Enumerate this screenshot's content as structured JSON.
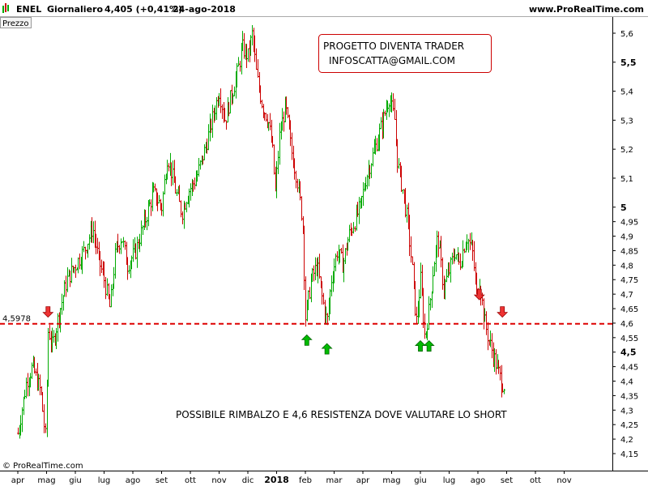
{
  "header": {
    "symbol": "ENEL",
    "timeframe": "Giornaliero",
    "last_price": "4,405 (+0,41%)",
    "date": "24-ago-2018",
    "website": "www.ProRealTime.com"
  },
  "panel_label": "Prezzo",
  "copyright": "© ProRealTime.com",
  "colors": {
    "up": "#00aa00",
    "down": "#cc0000",
    "line": "#dd0000",
    "box_border": "#cc0000",
    "arrow_up": "#00bb00",
    "arrow_down": "#ee3333"
  },
  "chart_data": {
    "type": "bar",
    "style": "ohlc",
    "ylim": [
      4.13,
      5.63
    ],
    "y_ticks": [
      {
        "value": 5.6,
        "label": "5,6"
      },
      {
        "value": 5.5,
        "label": "5,5",
        "bold": true
      },
      {
        "value": 5.4,
        "label": "5,4"
      },
      {
        "value": 5.3,
        "label": "5,3"
      },
      {
        "value": 5.2,
        "label": "5,2"
      },
      {
        "value": 5.1,
        "label": "5,1"
      },
      {
        "value": 5.0,
        "label": "5",
        "bold": true
      },
      {
        "value": 4.95,
        "label": "4,95"
      },
      {
        "value": 4.9,
        "label": "4,9"
      },
      {
        "value": 4.85,
        "label": "4,85"
      },
      {
        "value": 4.8,
        "label": "4,8"
      },
      {
        "value": 4.75,
        "label": "4,75"
      },
      {
        "value": 4.7,
        "label": "4,7"
      },
      {
        "value": 4.65,
        "label": "4,65"
      },
      {
        "value": 4.6,
        "label": "4,6"
      },
      {
        "value": 4.55,
        "label": "4,55"
      },
      {
        "value": 4.5,
        "label": "4,5",
        "bold": true
      },
      {
        "value": 4.45,
        "label": "4,45"
      },
      {
        "value": 4.4,
        "label": "4,4"
      },
      {
        "value": 4.35,
        "label": "4,35"
      },
      {
        "value": 4.3,
        "label": "4,3"
      },
      {
        "value": 4.25,
        "label": "4,25"
      },
      {
        "value": 4.2,
        "label": "4,2"
      },
      {
        "value": 4.15,
        "label": "4,15"
      }
    ],
    "x_ticks": [
      {
        "month": 0,
        "label": "apr"
      },
      {
        "month": 1,
        "label": "mag"
      },
      {
        "month": 2,
        "label": "giu"
      },
      {
        "month": 3,
        "label": "lug"
      },
      {
        "month": 4,
        "label": "ago"
      },
      {
        "month": 5,
        "label": "set"
      },
      {
        "month": 6,
        "label": "ott"
      },
      {
        "month": 7,
        "label": "nov"
      },
      {
        "month": 8,
        "label": "dic"
      },
      {
        "month": 9,
        "label": "2018",
        "bold": true
      },
      {
        "month": 10,
        "label": "feb"
      },
      {
        "month": 11,
        "label": "mar"
      },
      {
        "month": 12,
        "label": "apr"
      },
      {
        "month": 13,
        "label": "mag"
      },
      {
        "month": 14,
        "label": "giu"
      },
      {
        "month": 15,
        "label": "lug"
      },
      {
        "month": 16,
        "label": "ago"
      },
      {
        "month": 17,
        "label": "set"
      },
      {
        "month": 18,
        "label": "ott"
      },
      {
        "month": 19,
        "label": "nov"
      }
    ],
    "price_path": [
      [
        0.0,
        4.22
      ],
      [
        0.3,
        4.4
      ],
      [
        0.5,
        4.45
      ],
      [
        0.8,
        4.36
      ],
      [
        0.95,
        4.2
      ],
      [
        1.05,
        4.58
      ],
      [
        1.2,
        4.52
      ],
      [
        1.4,
        4.62
      ],
      [
        1.7,
        4.75
      ],
      [
        2.0,
        4.8
      ],
      [
        2.3,
        4.85
      ],
      [
        2.6,
        4.93
      ],
      [
        2.8,
        4.82
      ],
      [
        3.0,
        4.75
      ],
      [
        3.2,
        4.65
      ],
      [
        3.4,
        4.85
      ],
      [
        3.6,
        4.9
      ],
      [
        3.8,
        4.8
      ],
      [
        4.1,
        4.85
      ],
      [
        4.4,
        4.95
      ],
      [
        4.7,
        5.05
      ],
      [
        5.0,
        5.0
      ],
      [
        5.2,
        5.18
      ],
      [
        5.5,
        5.05
      ],
      [
        5.7,
        4.98
      ],
      [
        5.9,
        5.05
      ],
      [
        6.2,
        5.1
      ],
      [
        6.5,
        5.2
      ],
      [
        6.8,
        5.32
      ],
      [
        7.0,
        5.4
      ],
      [
        7.2,
        5.3
      ],
      [
        7.4,
        5.38
      ],
      [
        7.6,
        5.45
      ],
      [
        7.8,
        5.55
      ],
      [
        8.0,
        5.52
      ],
      [
        8.15,
        5.6
      ],
      [
        8.3,
        5.45
      ],
      [
        8.5,
        5.35
      ],
      [
        8.7,
        5.3
      ],
      [
        8.85,
        5.2
      ],
      [
        8.95,
        5.05
      ],
      [
        9.1,
        5.25
      ],
      [
        9.3,
        5.35
      ],
      [
        9.5,
        5.2
      ],
      [
        9.7,
        5.1
      ],
      [
        9.9,
        4.95
      ],
      [
        10.0,
        4.62
      ],
      [
        10.2,
        4.75
      ],
      [
        10.4,
        4.8
      ],
      [
        10.55,
        4.7
      ],
      [
        10.75,
        4.6
      ],
      [
        10.9,
        4.75
      ],
      [
        11.1,
        4.85
      ],
      [
        11.3,
        4.8
      ],
      [
        11.5,
        4.9
      ],
      [
        11.7,
        4.95
      ],
      [
        11.9,
        5.0
      ],
      [
        12.1,
        5.1
      ],
      [
        12.4,
        5.2
      ],
      [
        12.7,
        5.3
      ],
      [
        12.9,
        5.38
      ],
      [
        13.1,
        5.3
      ],
      [
        13.2,
        5.15
      ],
      [
        13.4,
        5.05
      ],
      [
        13.55,
        4.95
      ],
      [
        13.7,
        4.8
      ],
      [
        13.85,
        4.6
      ],
      [
        14.0,
        4.75
      ],
      [
        14.15,
        4.55
      ],
      [
        14.3,
        4.65
      ],
      [
        14.45,
        4.8
      ],
      [
        14.6,
        4.9
      ],
      [
        14.8,
        4.72
      ],
      [
        15.0,
        4.78
      ],
      [
        15.2,
        4.85
      ],
      [
        15.35,
        4.8
      ],
      [
        15.6,
        4.9
      ],
      [
        15.8,
        4.85
      ],
      [
        15.95,
        4.7
      ],
      [
        16.05,
        4.75
      ],
      [
        16.2,
        4.62
      ],
      [
        16.35,
        4.55
      ],
      [
        16.5,
        4.5
      ],
      [
        16.65,
        4.45
      ],
      [
        16.8,
        4.4
      ],
      [
        16.95,
        4.38
      ]
    ],
    "support_line": {
      "value": 4.5978,
      "label": "4,5978"
    },
    "arrows": [
      {
        "direction": "down",
        "month": 1.05,
        "price": 4.64
      },
      {
        "direction": "up",
        "month": 10.05,
        "price": 4.54
      },
      {
        "direction": "up",
        "month": 10.75,
        "price": 4.51
      },
      {
        "direction": "up",
        "month": 14.0,
        "price": 4.52
      },
      {
        "direction": "up",
        "month": 14.3,
        "price": 4.52
      },
      {
        "direction": "down",
        "month": 16.05,
        "price": 4.7
      },
      {
        "direction": "down",
        "month": 16.85,
        "price": 4.64
      }
    ],
    "annotations": {
      "box_line1": "PROGETTO DIVENTA TRADER",
      "box_line2": "INFOSCATTA@GMAIL.COM",
      "bottom_text": "POSSIBILE RIMBALZO E 4,6 RESISTENZA DOVE VALUTARE LO SHORT"
    }
  }
}
